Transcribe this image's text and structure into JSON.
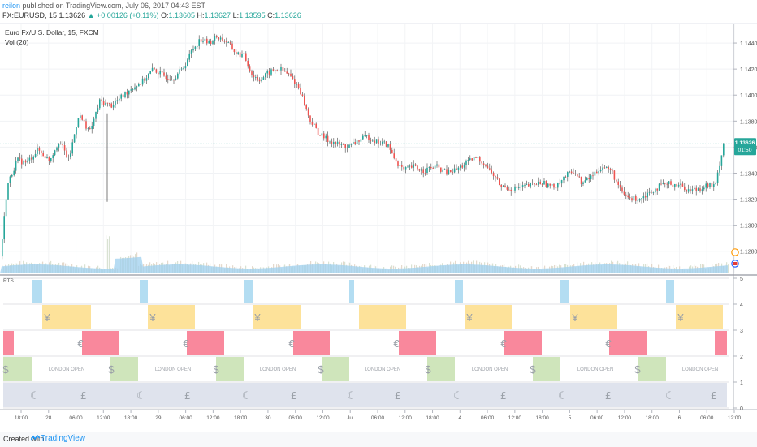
{
  "header": {
    "author": "reilon",
    "published": "published on TradingView.com, July 06, 2017 04:43 EST",
    "symbol": "FX:EURUSD, 15",
    "last": "1.13626",
    "change": "+0.00126 (+0.11%)",
    "ohlc": {
      "O": "1.13605",
      "H": "1.13627",
      "L": "1.13595",
      "C": "1.13626"
    }
  },
  "legend": {
    "title": "Euro Fx/U.S. Dollar, 15, FXCM",
    "vol": "Vol (20)"
  },
  "price_badge": {
    "price": "1.13626",
    "countdown": "01:50"
  },
  "lower_pane_label": "RTS",
  "footer": {
    "created": "Created with",
    "brand": "TradingView"
  },
  "colors": {
    "up": "#26a69a",
    "down": "#ef5350",
    "candle_body_up": "#2e7d32",
    "volume_avg": "#9fd0ef",
    "asia": "#b3ddf2",
    "tokyo": "#fde29a",
    "eu": "#f9889c",
    "us": "#cfe5bb",
    "uk": "#dfe3ed",
    "badge": "#26a69a"
  },
  "chart_data": [
    {
      "type": "candlestick",
      "title": "Euro Fx/U.S. Dollar, 15, FXCM",
      "ylim": [
        1.1263,
        1.1455
      ],
      "y_ticks": [
        "1.14400",
        "1.14200",
        "1.14000",
        "1.13800",
        "1.13600",
        "1.13400",
        "1.13200",
        "1.13000",
        "1.12800"
      ],
      "x_ticks": [
        "18:00",
        "28",
        "06:00",
        "12:00",
        "18:00",
        "29",
        "06:00",
        "12:00",
        "18:00",
        "30",
        "06:00",
        "12:00",
        "Jul",
        "06:00",
        "12:00",
        "18:00",
        "4",
        "06:00",
        "12:00",
        "18:00",
        "5",
        "06:00",
        "12:00",
        "18:00",
        "6",
        "06:00",
        "12:00"
      ],
      "close_anchors": [
        [
          0,
          1.1276
        ],
        [
          8,
          1.133
        ],
        [
          20,
          1.135
        ],
        [
          32,
          1.1348
        ],
        [
          46,
          1.1358
        ],
        [
          60,
          1.135
        ],
        [
          72,
          1.1365
        ],
        [
          84,
          1.135
        ],
        [
          96,
          1.1385
        ],
        [
          110,
          1.1372
        ],
        [
          122,
          1.1395
        ],
        [
          136,
          1.1392
        ],
        [
          148,
          1.1398
        ],
        [
          160,
          1.1405
        ],
        [
          174,
          1.141
        ],
        [
          188,
          1.142
        ],
        [
          200,
          1.1415
        ],
        [
          212,
          1.1413
        ],
        [
          224,
          1.142
        ],
        [
          236,
          1.1435
        ],
        [
          246,
          1.1443
        ],
        [
          256,
          1.144
        ],
        [
          266,
          1.1445
        ],
        [
          278,
          1.1441
        ],
        [
          290,
          1.1432
        ],
        [
          300,
          1.143
        ],
        [
          310,
          1.1415
        ],
        [
          320,
          1.1412
        ],
        [
          332,
          1.1418
        ],
        [
          344,
          1.142
        ],
        [
          356,
          1.1415
        ],
        [
          368,
          1.1405
        ],
        [
          380,
          1.1382
        ],
        [
          392,
          1.137
        ],
        [
          404,
          1.1365
        ],
        [
          416,
          1.1362
        ],
        [
          428,
          1.136
        ],
        [
          440,
          1.1365
        ],
        [
          452,
          1.1368
        ],
        [
          464,
          1.1364
        ],
        [
          476,
          1.1362
        ],
        [
          486,
          1.135
        ],
        [
          496,
          1.1342
        ],
        [
          508,
          1.1345
        ],
        [
          520,
          1.1342
        ],
        [
          536,
          1.1345
        ],
        [
          550,
          1.134
        ],
        [
          562,
          1.1343
        ],
        [
          574,
          1.1348
        ],
        [
          586,
          1.1352
        ],
        [
          596,
          1.1347
        ],
        [
          606,
          1.1339
        ],
        [
          616,
          1.133
        ],
        [
          628,
          1.1328
        ],
        [
          640,
          1.1329
        ],
        [
          654,
          1.1331
        ],
        [
          666,
          1.1333
        ],
        [
          680,
          1.1329
        ],
        [
          694,
          1.1337
        ],
        [
          706,
          1.1342
        ],
        [
          716,
          1.1332
        ],
        [
          728,
          1.1338
        ],
        [
          740,
          1.1345
        ],
        [
          752,
          1.1342
        ],
        [
          764,
          1.1325
        ],
        [
          776,
          1.132
        ],
        [
          788,
          1.1321
        ],
        [
          800,
          1.1326
        ],
        [
          812,
          1.133
        ],
        [
          824,
          1.1332
        ],
        [
          836,
          1.1331
        ],
        [
          846,
          1.1327
        ],
        [
          858,
          1.1328
        ],
        [
          870,
          1.1331
        ],
        [
          880,
          1.133
        ],
        [
          890,
          1.1363
        ]
      ]
    },
    {
      "type": "session-indicator",
      "title": "RTS",
      "ylim": [
        0,
        5
      ],
      "y_ticks": [
        "5",
        "4",
        "3",
        "2",
        "1",
        "0"
      ],
      "rows": [
        {
          "name": "asia",
          "level": [
            4,
            5
          ],
          "segments": [
            [
              40,
              52
            ],
            [
              172,
              182
            ],
            [
              301,
              311
            ],
            [
              430,
              436
            ],
            [
              560,
              570
            ],
            [
              690,
              700
            ],
            [
              820,
              830
            ]
          ],
          "symbols": []
        },
        {
          "name": "tokyo",
          "level": [
            3,
            4
          ],
          "segments": [
            [
              52,
              112
            ],
            [
              182,
              240
            ],
            [
              311,
              371
            ],
            [
              442,
              500
            ],
            [
              572,
              630
            ],
            [
              702,
              760
            ],
            [
              832,
              890
            ]
          ],
          "symbols": [
            {
              "ch": "¥",
              "at": [
                58,
                188,
                317,
                578,
                708,
                838
              ]
            }
          ]
        },
        {
          "name": "eu",
          "level": [
            2,
            3
          ],
          "segments": [
            [
              4,
              17
            ],
            [
              101,
              147
            ],
            [
              230,
              276
            ],
            [
              361,
              406
            ],
            [
              491,
              537
            ],
            [
              621,
              667
            ],
            [
              750,
              796
            ],
            [
              880,
              895
            ]
          ],
          "symbols": [
            {
              "ch": "€",
              "at": [
                99,
                229,
                359,
                488,
                620,
                749
              ]
            }
          ]
        },
        {
          "name": "us",
          "level": [
            1,
            2
          ],
          "segments": [
            [
              4,
              40
            ],
            [
              136,
              170
            ],
            [
              266,
              300
            ],
            [
              396,
              430
            ],
            [
              526,
              560
            ],
            [
              656,
              690
            ],
            [
              786,
              820
            ]
          ],
          "symbols": [
            {
              "ch": "$",
              "at": [
                7,
                137,
                266,
                395,
                527,
                656,
                785
              ]
            }
          ],
          "labels": [
            {
              "text": "LONDON OPEN",
              "at": [
                82,
                213,
                342,
                471,
                603,
                733,
                862
              ]
            }
          ]
        },
        {
          "name": "uk",
          "level": [
            0,
            1
          ],
          "segments": [
            [
              4,
              895
            ]
          ],
          "symbols": [
            {
              "ch": "£",
              "at": [
                103,
                231,
                362,
                490,
                620,
                749,
                879
              ]
            },
            {
              "ch": "☾",
              "at": [
                43,
                174,
                304,
                433,
                564,
                693,
                825
              ]
            }
          ]
        }
      ]
    }
  ]
}
